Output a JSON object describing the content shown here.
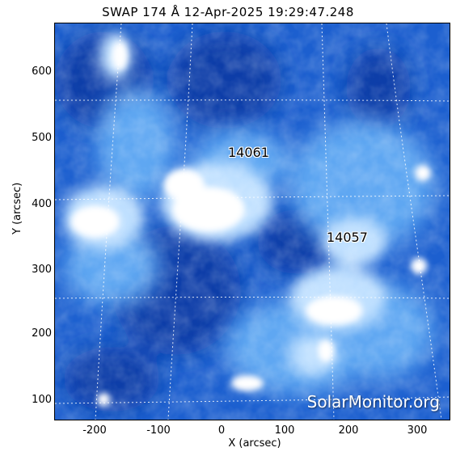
{
  "title": "SWAP 174 Å 12-Apr-2025 19:29:47.248",
  "axes": {
    "xlabel": "X (arcsec)",
    "ylabel": "Y (arcsec)",
    "xticks": [
      "-200",
      "-100",
      "0",
      "100",
      "200",
      "300"
    ],
    "yticks": [
      "600",
      "500",
      "400",
      "300",
      "200",
      "100"
    ]
  },
  "regions": [
    {
      "id": "region-14061",
      "label": "14061"
    },
    {
      "id": "region-14057",
      "label": "14057"
    }
  ],
  "watermark": "SolarMonitor.org",
  "colors": {
    "dark": "#0a3fb0",
    "mid": "#2f7fe0",
    "light": "#a9d2ff",
    "bright": "#ffffff",
    "grid": "#ffffff"
  }
}
